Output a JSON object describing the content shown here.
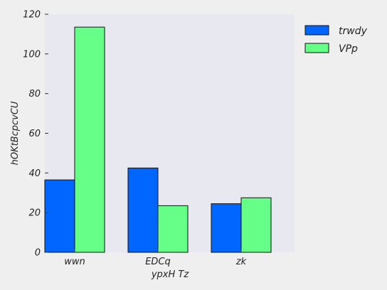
{
  "chart_data": {
    "type": "bar",
    "title": "",
    "xlabel": "ypxH Tz",
    "ylabel": "hOKtBcpcvCU",
    "categories": [
      "wwn",
      "EDCq",
      "zk"
    ],
    "series": [
      {
        "name": "trwdy",
        "values": [
          36.5,
          42.5,
          24.5
        ],
        "color": "#0066ff"
      },
      {
        "name": "VPp",
        "values": [
          113.5,
          23.5,
          27.5
        ],
        "color": "#66ff88"
      }
    ],
    "ylim": [
      0,
      120
    ],
    "yticks": [
      0,
      20,
      40,
      60,
      80,
      100,
      120
    ],
    "grid": false,
    "legend_position": "top-right, outside plot",
    "plot_background": "#e8e8f0",
    "figure_background": "#efefef"
  }
}
